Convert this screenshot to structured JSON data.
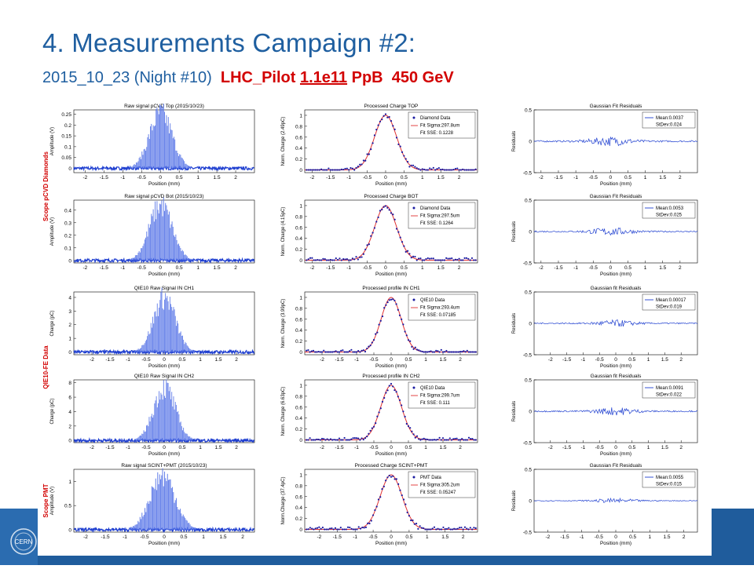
{
  "header": {
    "title": "4. Measurements Campaign #2:",
    "subtitle_date": "2015_10_23",
    "subtitle_night": "(Night #10)",
    "subtitle_fill": "LHC_Pilot",
    "subtitle_intensity": "1.1e11",
    "subtitle_ppb": "PpB",
    "subtitle_energy": "450 GeV"
  },
  "row_groups": [
    {
      "label": "Scope pCVD Diamonds"
    },
    {
      "label": "QIE10-FE Data"
    },
    {
      "label": "Scope PMT"
    }
  ],
  "colors": {
    "title_blue": "#1f5fa0",
    "accent_red": "#d20000",
    "data_blue": "#1f3fd0",
    "fit_red": "#e03030",
    "footer_blue": "#1f5c9c"
  },
  "logo": {
    "text": "CERN"
  },
  "chart_data": [
    {
      "type": "bar",
      "title": "Raw signal pCVD Top (2015/10/23)",
      "xlabel": "Position (mm)",
      "ylabel": "Amplitude (V)",
      "xlim": [
        -2.3,
        2.5
      ],
      "ylim": [
        -0.02,
        0.27
      ],
      "xticks": [
        -2,
        -1.5,
        -1,
        -0.5,
        0,
        0.5,
        1,
        1.5,
        2
      ],
      "yticks": [
        0,
        0.05,
        0.1,
        0.15,
        0.2,
        0.25
      ],
      "peak": 0.26,
      "center": 0.0,
      "sigma": 0.3
    },
    {
      "type": "scatter",
      "title": "Processed Charge TOP",
      "xlabel": "Position (mm)",
      "ylabel": "Norm. Charge (2.49pC)",
      "xlim": [
        -2.2,
        2.5
      ],
      "ylim": [
        -0.05,
        1.1
      ],
      "xticks": [
        -2,
        -1.5,
        -1,
        -0.5,
        0,
        0.5,
        1,
        1.5,
        2
      ],
      "yticks": [
        0,
        0.2,
        0.4,
        0.6,
        0.8,
        1
      ],
      "legend": [
        "Diamond Data",
        "Fit Sigma:297.8um",
        "Fit SSE: 0.1228"
      ],
      "center": 0.0,
      "sigma": 0.3
    },
    {
      "type": "line",
      "title": "Gaussian Fit Residuals",
      "xlabel": "Position (mm)",
      "ylabel": "Residuals",
      "xlim": [
        -2.2,
        2.5
      ],
      "ylim": [
        -0.5,
        0.5
      ],
      "xticks": [
        -2,
        -1.5,
        -1,
        -0.5,
        0,
        0.5,
        1,
        1.5,
        2
      ],
      "yticks": [
        -0.5,
        0,
        0.5
      ],
      "legend": [
        "Mean:0.0037",
        "StDev:0.024"
      ],
      "amp": 0.08
    },
    {
      "type": "bar",
      "title": "Raw signal pCVD Bot (2015/10/23)",
      "xlabel": "Position (mm)",
      "ylabel": "Amplitude (V)",
      "xlim": [
        -2.3,
        2.5
      ],
      "ylim": [
        -0.02,
        0.48
      ],
      "xticks": [
        -2,
        -1.5,
        -1,
        -0.5,
        0,
        0.5,
        1,
        1.5,
        2
      ],
      "yticks": [
        0,
        0.1,
        0.2,
        0.3,
        0.4
      ],
      "peak": 0.45,
      "center": 0.0,
      "sigma": 0.3
    },
    {
      "type": "scatter",
      "title": "Processed Charge BOT",
      "xlabel": "Position (mm)",
      "ylabel": "Norm. Charge (4.15pC)",
      "xlim": [
        -2.2,
        2.5
      ],
      "ylim": [
        -0.05,
        1.1
      ],
      "xticks": [
        -2,
        -1.5,
        -1,
        -0.5,
        0,
        0.5,
        1,
        1.5,
        2
      ],
      "yticks": [
        0,
        0.2,
        0.4,
        0.6,
        0.8,
        1
      ],
      "legend": [
        "Diamond Data",
        "Fit Sigma:297.5um",
        "Fit SSE: 0.1264"
      ],
      "center": 0.0,
      "sigma": 0.3
    },
    {
      "type": "line",
      "title": "Gaussian Fit Residuals",
      "xlabel": "Position (mm)",
      "ylabel": "Residuals",
      "xlim": [
        -2.2,
        2.5
      ],
      "ylim": [
        -0.5,
        0.5
      ],
      "xticks": [
        -2,
        -1.5,
        -1,
        -0.5,
        0,
        0.5,
        1,
        1.5,
        2
      ],
      "yticks": [
        -0.5,
        0,
        0.5
      ],
      "legend": [
        "Mean:0.0053",
        "StDev:0.025"
      ],
      "amp": 0.07
    },
    {
      "type": "bar",
      "title": "QIE10 Raw Signal IN CH1",
      "xlabel": "Position (mm)",
      "ylabel": "Charge (pC)",
      "xlim": [
        -2.5,
        2.5
      ],
      "ylim": [
        -0.2,
        4.4
      ],
      "xticks": [
        -2,
        -1.5,
        -1,
        -0.5,
        0,
        0.5,
        1,
        1.5,
        2
      ],
      "yticks": [
        0,
        1,
        2,
        3,
        4
      ],
      "peak": 4.1,
      "center": 0.0,
      "sigma": 0.3
    },
    {
      "type": "scatter",
      "title": "Processed profile IN CH1",
      "xlabel": "Position (mm)",
      "ylabel": "Norm. Charge (3.99pC)",
      "xlim": [
        -2.5,
        2.5
      ],
      "ylim": [
        -0.05,
        1.1
      ],
      "xticks": [
        -2,
        -1.5,
        -1,
        -0.5,
        0,
        0.5,
        1,
        1.5,
        2
      ],
      "yticks": [
        0,
        0.2,
        0.4,
        0.6,
        0.8,
        1
      ],
      "legend": [
        "QIE10 Data",
        "Fit Sigma:293.4um",
        "Fit SSE: 0.07185"
      ],
      "center": 0.0,
      "sigma": 0.29
    },
    {
      "type": "line",
      "title": "Gaussian fit Residuals",
      "xlabel": "Position (mm)",
      "ylabel": "Residuals",
      "xlim": [
        -2.5,
        2.5
      ],
      "ylim": [
        -0.5,
        0.5
      ],
      "xticks": [
        -2,
        -1.5,
        -1,
        -0.5,
        0,
        0.5,
        1,
        1.5,
        2
      ],
      "yticks": [
        -0.5,
        0,
        0.5
      ],
      "legend": [
        "Mean:0.00017",
        "StDev:0.019"
      ],
      "amp": 0.06
    },
    {
      "type": "bar",
      "title": "QIE10 Raw Signal IN CH2",
      "xlabel": "Position (mm)",
      "ylabel": "Charge (pC)",
      "xlim": [
        -2.5,
        2.5
      ],
      "ylim": [
        -0.3,
        8.4
      ],
      "xticks": [
        -2,
        -1.5,
        -1,
        -0.5,
        0,
        0.5,
        1,
        1.5,
        2
      ],
      "yticks": [
        0,
        2,
        4,
        6,
        8
      ],
      "peak": 7.5,
      "center": 0.0,
      "sigma": 0.3
    },
    {
      "type": "scatter",
      "title": "Processed profile IN CH2",
      "xlabel": "Position (mm)",
      "ylabel": "Norm. Charge (6.63pC)",
      "xlim": [
        -2.5,
        2.5
      ],
      "ylim": [
        -0.05,
        1.1
      ],
      "xticks": [
        -2,
        -1.5,
        -1,
        -0.5,
        0,
        0.5,
        1,
        1.5,
        2
      ],
      "yticks": [
        0,
        0.2,
        0.4,
        0.6,
        0.8,
        1
      ],
      "legend": [
        "QIE10 Data",
        "Fit Sigma:299.7um",
        "Fit SSE: 0.111"
      ],
      "center": 0.0,
      "sigma": 0.3
    },
    {
      "type": "line",
      "title": "Gaussian fit Residuals",
      "xlabel": "Position (mm)",
      "ylabel": "Residuals",
      "xlim": [
        -2.5,
        2.5
      ],
      "ylim": [
        -0.5,
        0.5
      ],
      "xticks": [
        -2,
        -1.5,
        -1,
        -0.5,
        0,
        0.5,
        1,
        1.5,
        2
      ],
      "yticks": [
        -0.5,
        0,
        0.5
      ],
      "legend": [
        "Mean:0.0091",
        "StDev:0.022"
      ],
      "amp": 0.07
    },
    {
      "type": "bar",
      "title": "Raw signal SCINT+PMT (2015/10/23)",
      "xlabel": "Position (mm)",
      "ylabel": "Amplitude (V)",
      "xlim": [
        -2.3,
        2.3
      ],
      "ylim": [
        -0.05,
        1.25
      ],
      "xticks": [
        -2,
        -1.5,
        -1,
        -0.5,
        0,
        0.5,
        1,
        1.5,
        2
      ],
      "yticks": [
        0,
        0.5,
        1
      ],
      "peak": 1.15,
      "center": -0.05,
      "sigma": 0.32
    },
    {
      "type": "scatter",
      "title": "Processed Charge SCINT+PMT",
      "xlabel": "Position (mm)",
      "ylabel": "Norm.Charge (37.4pC)",
      "xlim": [
        -2.4,
        2.4
      ],
      "ylim": [
        -0.05,
        1.1
      ],
      "xticks": [
        -2,
        -1.5,
        -1,
        -0.5,
        0,
        0.5,
        1,
        1.5,
        2
      ],
      "yticks": [
        0,
        0.2,
        0.4,
        0.6,
        0.8,
        1
      ],
      "legend": [
        "PMT Data",
        "Fit Sigma:305.2um",
        "Fit SSE: 0.05247"
      ],
      "center": 0.0,
      "sigma": 0.305
    },
    {
      "type": "line",
      "title": "Gaussian Fit Residuals",
      "xlabel": "Position (mm)",
      "ylabel": "Residuals",
      "xlim": [
        -2.4,
        2.4
      ],
      "ylim": [
        -0.5,
        0.5
      ],
      "xticks": [
        -2,
        -1.5,
        -1,
        -0.5,
        0,
        0.5,
        1,
        1.5,
        2
      ],
      "yticks": [
        -0.5,
        0,
        0.5
      ],
      "legend": [
        "Mean:0.0055",
        "StDev:0.015"
      ],
      "amp": 0.04
    }
  ]
}
